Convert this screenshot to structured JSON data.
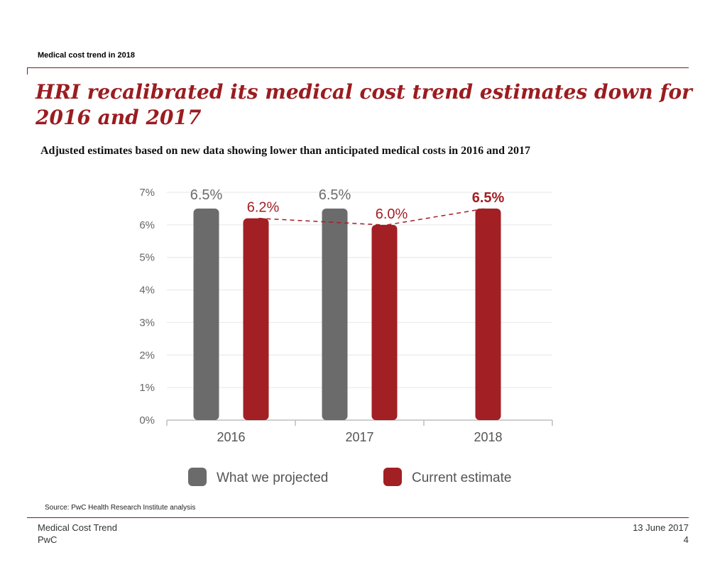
{
  "header": {
    "section_label": "Medical cost trend in 2018",
    "title": "HRI recalibrated its medical cost trend estimates down for 2016 and 2017",
    "subtitle": "Adjusted estimates based on new data showing lower than anticipated medical costs in 2016 and 2017"
  },
  "chart_data": {
    "type": "bar",
    "categories": [
      "2016",
      "2017",
      "2018"
    ],
    "series": [
      {
        "name": "What we projected",
        "values": [
          6.5,
          6.5,
          null
        ],
        "color": "#6b6b6b",
        "labels": [
          "6.5%",
          "6.5%",
          ""
        ]
      },
      {
        "name": "Current estimate",
        "values": [
          6.2,
          6.0,
          6.5
        ],
        "color": "#a21f24",
        "labels": [
          "6.2%",
          "6.0%",
          "6.5%"
        ]
      }
    ],
    "ylim": [
      0,
      7
    ],
    "yticks": [
      "0%",
      "1%",
      "2%",
      "3%",
      "4%",
      "5%",
      "6%",
      "7%"
    ],
    "grid": true,
    "trend_line": "dashed line connecting Current estimate bars",
    "legend_position": "bottom",
    "label_color": "#a21f24",
    "highlighted_label": "6.5%"
  },
  "footer": {
    "source": "Source: PwC Health Research Institute analysis",
    "doc_name": "Medical Cost Trend",
    "company": "PwC",
    "date": "13 June 2017",
    "page_number": "4"
  }
}
